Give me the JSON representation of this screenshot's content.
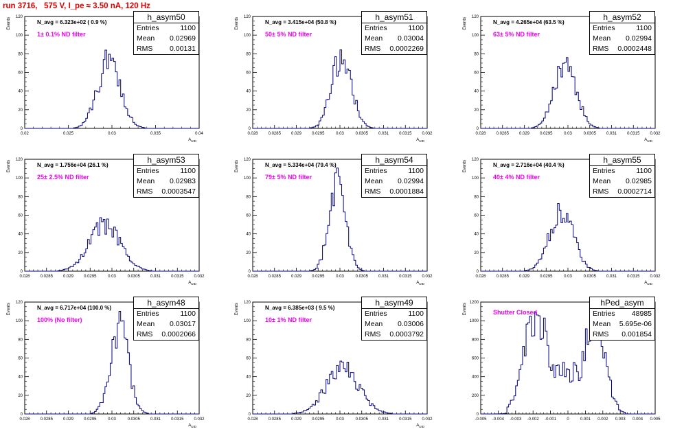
{
  "canvas_title": "run 3716,   575 V, I_pe ≈ 3.50 nA, 120 Hz",
  "colors": {
    "title": "#dd0000",
    "histogram": "#000080",
    "annotation": "#ee00ee"
  },
  "stat_labels": {
    "entries": "Entries",
    "mean": "Mean",
    "rms": "RMS"
  },
  "chart_data": [
    {
      "type": "histogram",
      "name": "h_asym50",
      "entries": "1100",
      "mean": "0.02969",
      "rms": "0.00131",
      "navg": "N_avg = 6.323e+02 ( 0.9 %)",
      "filter": "1± 0.1% ND filter",
      "ylabel": "Events",
      "xlabel": "A_UID",
      "xlim": [
        0.02,
        0.04
      ],
      "ylim": [
        0,
        120
      ],
      "xticks": [
        "0.02",
        "0.025",
        "0.03",
        "0.035",
        "0.04"
      ],
      "yticks": [
        "0",
        "20",
        "40",
        "60",
        "80",
        "100",
        "120"
      ],
      "gauss": {
        "mu": 0.02969,
        "sigma": 0.00131,
        "peak": 73
      }
    },
    {
      "type": "histogram",
      "name": "h_asym51",
      "entries": "1100",
      "mean": "0.03004",
      "rms": "0.0002269",
      "navg": "N_avg = 3.415e+04 (50.8 %)",
      "filter": "50± 5% ND filter",
      "ylabel": "Events",
      "xlabel": "A_UID",
      "xlim": [
        0.028,
        0.032
      ],
      "ylim": [
        0,
        120
      ],
      "xticks": [
        "0.028",
        "0.0285",
        "0.029",
        "0.0295",
        "0.03",
        "0.0305",
        "0.031",
        "0.0315",
        "0.032"
      ],
      "yticks": [
        "0",
        "20",
        "40",
        "60",
        "80",
        "100",
        "120"
      ],
      "gauss": {
        "mu": 0.03004,
        "sigma": 0.0002269,
        "peak": 78
      }
    },
    {
      "type": "histogram",
      "name": "h_asym52",
      "entries": "1100",
      "mean": "0.02994",
      "rms": "0.0002448",
      "navg": "N_avg = 4.265e+04 (63.5 %)",
      "filter": "63± 5% ND filter",
      "ylabel": "Events",
      "xlabel": "A_UID",
      "xlim": [
        0.028,
        0.032
      ],
      "ylim": [
        0,
        120
      ],
      "xticks": [
        "0.028",
        "0.0285",
        "0.029",
        "0.0295",
        "0.03",
        "0.0305",
        "0.031",
        "0.0315",
        "0.032"
      ],
      "yticks": [
        "0",
        "20",
        "40",
        "60",
        "80",
        "100",
        "120"
      ],
      "gauss": {
        "mu": 0.02994,
        "sigma": 0.0002448,
        "peak": 73
      }
    },
    {
      "type": "histogram",
      "name": "h_asym53",
      "entries": "1100",
      "mean": "0.02983",
      "rms": "0.0003547",
      "navg": "N_avg = 1.756e+04 (26.1 %)",
      "filter": "25± 2.5% ND filter",
      "ylabel": "Events",
      "xlabel": "A_UID",
      "xlim": [
        0.028,
        0.032
      ],
      "ylim": [
        0,
        120
      ],
      "xticks": [
        "0.028",
        "0.0285",
        "0.029",
        "0.0295",
        "0.03",
        "0.0305",
        "0.031",
        "0.0315",
        "0.032"
      ],
      "yticks": [
        "0",
        "20",
        "40",
        "60",
        "80",
        "100",
        "120"
      ],
      "gauss": {
        "mu": 0.02983,
        "sigma": 0.0003547,
        "peak": 50
      }
    },
    {
      "type": "histogram",
      "name": "h_asym54",
      "entries": "1100",
      "mean": "0.02994",
      "rms": "0.0001884",
      "navg": "N_avg = 5.334e+04 (79.4 %)",
      "filter": "79± 5% ND filter",
      "ylabel": "Events",
      "xlabel": "A_UID",
      "xlim": [
        0.028,
        0.032
      ],
      "ylim": [
        0,
        120
      ],
      "xticks": [
        "0.028",
        "0.0285",
        "0.029",
        "0.0295",
        "0.03",
        "0.0305",
        "0.031",
        "0.0315",
        "0.032"
      ],
      "yticks": [
        "0",
        "20",
        "40",
        "60",
        "80",
        "100",
        "120"
      ],
      "gauss": {
        "mu": 0.02994,
        "sigma": 0.0001884,
        "peak": 98
      }
    },
    {
      "type": "histogram",
      "name": "h_asym55",
      "entries": "1100",
      "mean": "0.02985",
      "rms": "0.0002714",
      "navg": "N_avg = 2.716e+04 (40.4 %)",
      "filter": "40± 4% ND filter",
      "ylabel": "Events",
      "xlabel": "A_UID",
      "xlim": [
        0.028,
        0.032
      ],
      "ylim": [
        0,
        120
      ],
      "xticks": [
        "0.028",
        "0.0285",
        "0.029",
        "0.0295",
        "0.03",
        "0.0305",
        "0.031",
        "0.0315",
        "0.032"
      ],
      "yticks": [
        "0",
        "20",
        "40",
        "60",
        "80",
        "100",
        "120"
      ],
      "gauss": {
        "mu": 0.02985,
        "sigma": 0.0002714,
        "peak": 64
      }
    },
    {
      "type": "histogram",
      "name": "h_asym48",
      "entries": "1100",
      "mean": "0.03017",
      "rms": "0.0002066",
      "navg": "N_avg = 6.717e+04 (100.0 %)",
      "filter": "100% (No filter)",
      "ylabel": "Events",
      "xlabel": "A_UID",
      "xlim": [
        0.028,
        0.032
      ],
      "ylim": [
        0,
        120
      ],
      "xticks": [
        "0.028",
        "0.0285",
        "0.029",
        "0.0295",
        "0.03",
        "0.0305",
        "0.031",
        "0.0315",
        "0.032"
      ],
      "yticks": [
        "0",
        "20",
        "40",
        "60",
        "80",
        "100",
        "120"
      ],
      "gauss": {
        "mu": 0.03017,
        "sigma": 0.0002066,
        "peak": 92
      }
    },
    {
      "type": "histogram",
      "name": "h_asym49",
      "entries": "1100",
      "mean": "0.03006",
      "rms": "0.0003792",
      "navg": "N_avg = 6.385e+03 ( 9.5 %)",
      "filter": "10± 1% ND filter",
      "ylabel": "Events",
      "xlabel": "A_UID",
      "xlim": [
        0.028,
        0.032
      ],
      "ylim": [
        0,
        120
      ],
      "xticks": [
        "0.028",
        "0.0285",
        "0.029",
        "0.0295",
        "0.03",
        "0.0305",
        "0.031",
        "0.0315",
        "0.032"
      ],
      "yticks": [
        "0",
        "20",
        "40",
        "60",
        "80",
        "100",
        "120"
      ],
      "gauss": {
        "mu": 0.03006,
        "sigma": 0.0003792,
        "peak": 48
      }
    },
    {
      "type": "histogram",
      "name": "hPed_asym",
      "entries": "48985",
      "mean": "5.695e-06",
      "rms": "0.001854",
      "navg": "",
      "filter": "Shutter Closed",
      "ylabel": "Events",
      "xlabel": "",
      "xlim": [
        -0.005,
        0.005
      ],
      "ylim": [
        0,
        1300
      ],
      "xticks": [
        "-0.005",
        "-0.004",
        "-0.003",
        "-0.002",
        "-0.001",
        "0",
        "0.001",
        "0.002",
        "0.003",
        "0.004",
        "0.005"
      ],
      "yticks": [
        "0",
        "200",
        "400",
        "600",
        "800",
        "1000",
        "1200"
      ],
      "bimodal": [
        {
          "mu": -0.0018,
          "sigma": 0.0007,
          "peak": 1180
        },
        {
          "mu": 0.0015,
          "sigma": 0.0006,
          "peak": 1130
        }
      ]
    }
  ]
}
